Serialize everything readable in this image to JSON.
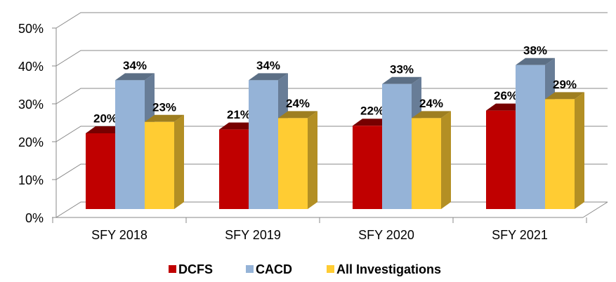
{
  "chart_data": {
    "type": "bar3d",
    "categories": [
      "SFY 2018",
      "SFY 2019",
      "SFY 2020",
      "SFY 2021"
    ],
    "series": [
      {
        "name": "DCFS",
        "color": "#c00000",
        "values": [
          20,
          21,
          22,
          26
        ],
        "value_labels": [
          "20%",
          "21%",
          "22%",
          "26%"
        ]
      },
      {
        "name": "CACD",
        "color": "#95b3d7",
        "values": [
          34,
          34,
          33,
          38
        ],
        "value_labels": [
          "34%",
          "34%",
          "33%",
          "38%"
        ]
      },
      {
        "name": "All Investigations",
        "color": "#ffcc33",
        "values": [
          23,
          24,
          24,
          29
        ],
        "value_labels": [
          "23%",
          "24%",
          "24%",
          "29%"
        ]
      }
    ],
    "ylim": [
      0,
      50
    ],
    "yticks": [
      {
        "value": 0,
        "label": "0%"
      },
      {
        "value": 10,
        "label": "10%"
      },
      {
        "value": 20,
        "label": "20%"
      },
      {
        "value": 30,
        "label": "30%"
      },
      {
        "value": 40,
        "label": "40%"
      },
      {
        "value": 50,
        "label": "50%"
      }
    ],
    "grid": true,
    "legend": "bottom"
  }
}
